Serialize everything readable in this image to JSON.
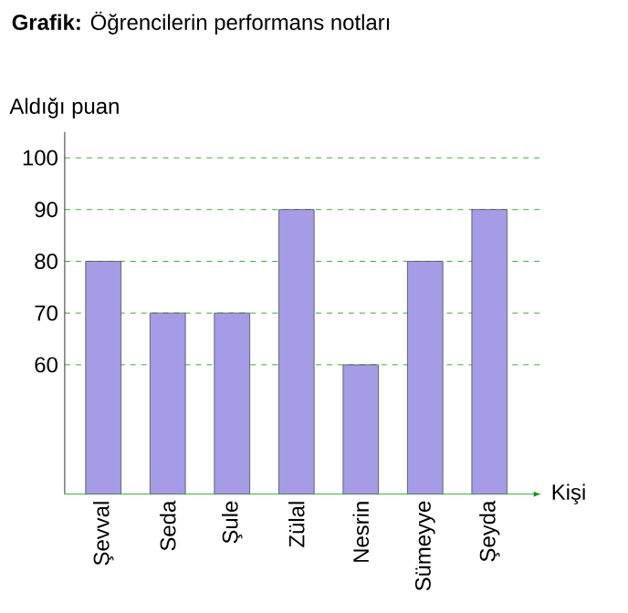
{
  "chart_data": {
    "type": "bar",
    "title": "**Grafik:** Öğrencilerin performans notları",
    "xlabel": "Kişi",
    "ylabel": "Aldığı puan",
    "categories": [
      "Şevval",
      "Seda",
      "Şule",
      "Zülal",
      "Nesrin",
      "Sümeyye",
      "Şeyda"
    ],
    "values": [
      80,
      70,
      70,
      90,
      60,
      80,
      90
    ],
    "color": "#a59be6",
    "ylim": [
      35,
      105
    ],
    "yticks": [
      60,
      70,
      80,
      90,
      100
    ],
    "grid": "y"
  }
}
